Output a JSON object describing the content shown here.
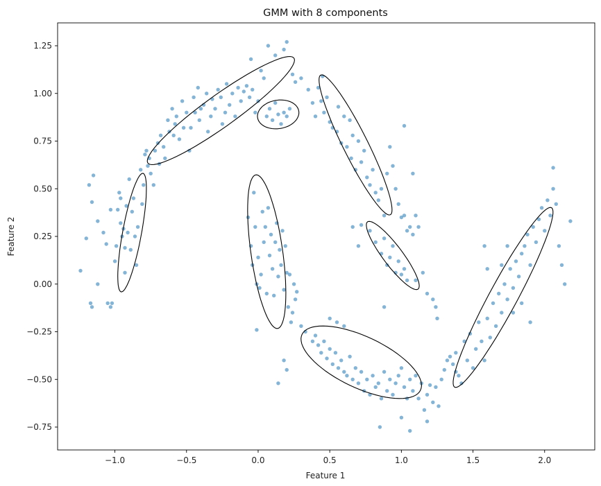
{
  "chart_data": {
    "type": "scatter",
    "title": "GMM with 8 components",
    "xlabel": "Feature 1",
    "ylabel": "Feature 2",
    "xlim": [
      -1.4,
      2.35
    ],
    "ylim": [
      -0.87,
      1.37
    ],
    "x_ticks": [
      -1.0,
      -0.5,
      0.0,
      0.5,
      1.0,
      1.5,
      2.0
    ],
    "x_tick_labels": [
      "−1.0",
      "−0.5",
      "0.0",
      "0.5",
      "1.0",
      "1.5",
      "2.0"
    ],
    "y_ticks": [
      -0.75,
      -0.5,
      -0.25,
      0.0,
      0.25,
      0.5,
      0.75,
      1.0,
      1.25
    ],
    "y_tick_labels": [
      "−0.75",
      "−0.50",
      "−0.25",
      "0.00",
      "0.25",
      "0.50",
      "0.75",
      "1.00",
      "1.25"
    ],
    "grid": false,
    "point_color": "#1f77b4",
    "point_opacity": 0.55,
    "ellipse_color": "#000000",
    "points": [
      [
        -1.24,
        0.07
      ],
      [
        -1.18,
        0.52
      ],
      [
        -1.17,
        -0.1
      ],
      [
        -1.16,
        -0.12
      ],
      [
        -1.16,
        0.43
      ],
      [
        -1.15,
        0.57
      ],
      [
        -1.2,
        0.24
      ],
      [
        -1.12,
        0.33
      ],
      [
        -1.12,
        0.0
      ],
      [
        -1.08,
        0.27
      ],
      [
        -1.06,
        0.21
      ],
      [
        -1.05,
        -0.1
      ],
      [
        -1.03,
        -0.12
      ],
      [
        -1.03,
        0.39
      ],
      [
        -1.02,
        -0.1
      ],
      [
        -1.0,
        0.12
      ],
      [
        -0.99,
        0.2
      ],
      [
        -0.98,
        0.39
      ],
      [
        -0.97,
        0.48
      ],
      [
        -0.96,
        0.45
      ],
      [
        -0.96,
        0.32
      ],
      [
        -0.95,
        0.25
      ],
      [
        -0.94,
        0.29
      ],
      [
        -0.93,
        0.19
      ],
      [
        -0.93,
        0.06
      ],
      [
        -0.92,
        0.41
      ],
      [
        -0.91,
        0.27
      ],
      [
        -0.9,
        0.55
      ],
      [
        -0.89,
        0.18
      ],
      [
        -0.88,
        0.38
      ],
      [
        -0.87,
        0.45
      ],
      [
        -0.86,
        0.25
      ],
      [
        -0.85,
        0.1
      ],
      [
        -0.84,
        0.3
      ],
      [
        -0.82,
        0.6
      ],
      [
        -0.81,
        0.42
      ],
      [
        -0.8,
        0.52
      ],
      [
        -0.79,
        0.68
      ],
      [
        -0.78,
        0.7
      ],
      [
        -0.77,
        0.62
      ],
      [
        -0.76,
        0.66
      ],
      [
        -0.75,
        0.58
      ],
      [
        -0.73,
        0.52
      ],
      [
        -0.72,
        0.7
      ],
      [
        -0.7,
        0.74
      ],
      [
        -0.69,
        0.63
      ],
      [
        -0.68,
        0.78
      ],
      [
        -0.66,
        0.72
      ],
      [
        -0.65,
        0.66
      ],
      [
        -0.63,
        0.86
      ],
      [
        -0.62,
        0.8
      ],
      [
        -0.6,
        0.92
      ],
      [
        -0.59,
        0.78
      ],
      [
        -0.58,
        0.84
      ],
      [
        -0.57,
        0.88
      ],
      [
        -0.55,
        0.76
      ],
      [
        -0.53,
        0.96
      ],
      [
        -0.52,
        0.82
      ],
      [
        -0.5,
        0.9
      ],
      [
        -0.48,
        0.7
      ],
      [
        -0.47,
        0.82
      ],
      [
        -0.45,
        0.98
      ],
      [
        -0.44,
        0.9
      ],
      [
        -0.42,
        1.03
      ],
      [
        -0.41,
        0.86
      ],
      [
        -0.4,
        0.92
      ],
      [
        -0.38,
        0.94
      ],
      [
        -0.36,
        1.0
      ],
      [
        -0.35,
        0.8
      ],
      [
        -0.33,
        0.88
      ],
      [
        -0.32,
        0.97
      ],
      [
        -0.3,
        0.92
      ],
      [
        -0.28,
        1.02
      ],
      [
        -0.26,
        0.98
      ],
      [
        -0.25,
        0.84
      ],
      [
        -0.23,
        0.9
      ],
      [
        -0.22,
        1.05
      ],
      [
        -0.2,
        0.94
      ],
      [
        -0.18,
        1.0
      ],
      [
        -0.16,
        0.88
      ],
      [
        -0.14,
        1.03
      ],
      [
        -0.12,
        0.96
      ],
      [
        -0.1,
        1.01
      ],
      [
        -0.08,
        1.04
      ],
      [
        -0.06,
        0.98
      ],
      [
        -0.04,
        1.02
      ],
      [
        -0.02,
        0.9
      ],
      [
        0.0,
        0.96
      ],
      [
        -0.05,
        1.18
      ],
      [
        0.02,
        1.12
      ],
      [
        0.04,
        1.08
      ],
      [
        0.06,
        0.88
      ],
      [
        0.08,
        0.92
      ],
      [
        0.1,
        0.86
      ],
      [
        0.12,
        0.95
      ],
      [
        0.14,
        0.89
      ],
      [
        0.16,
        0.84
      ],
      [
        0.18,
        0.9
      ],
      [
        0.2,
        0.88
      ],
      [
        0.22,
        0.92
      ],
      [
        0.12,
        1.2
      ],
      [
        0.07,
        1.25
      ],
      [
        0.18,
        1.23
      ],
      [
        0.2,
        1.27
      ],
      [
        0.24,
        1.1
      ],
      [
        0.26,
        1.06
      ],
      [
        0.3,
        1.08
      ],
      [
        0.35,
        1.02
      ],
      [
        0.38,
        0.95
      ],
      [
        0.4,
        0.88
      ],
      [
        0.42,
        1.03
      ],
      [
        0.44,
        0.96
      ],
      [
        0.45,
        1.09
      ],
      [
        0.46,
        0.9
      ],
      [
        0.48,
        0.98
      ],
      [
        0.5,
        0.85
      ],
      [
        0.52,
        0.82
      ],
      [
        0.55,
        0.8
      ],
      [
        0.56,
        0.93
      ],
      [
        0.58,
        0.74
      ],
      [
        0.6,
        0.88
      ],
      [
        0.62,
        0.72
      ],
      [
        0.64,
        0.86
      ],
      [
        0.65,
        0.66
      ],
      [
        0.66,
        0.78
      ],
      [
        0.68,
        0.6
      ],
      [
        0.7,
        0.75
      ],
      [
        0.72,
        0.64
      ],
      [
        0.74,
        0.7
      ],
      [
        0.76,
        0.56
      ],
      [
        0.78,
        0.52
      ],
      [
        0.8,
        0.6
      ],
      [
        0.82,
        0.48
      ],
      [
        0.84,
        0.44
      ],
      [
        0.86,
        0.5
      ],
      [
        0.88,
        0.36
      ],
      [
        0.9,
        0.58
      ],
      [
        0.92,
        0.72
      ],
      [
        0.94,
        0.62
      ],
      [
        0.96,
        0.5
      ],
      [
        0.98,
        0.42
      ],
      [
        1.0,
        0.35
      ],
      [
        1.02,
        0.36
      ],
      [
        1.04,
        0.28
      ],
      [
        1.06,
        0.3
      ],
      [
        1.08,
        0.26
      ],
      [
        1.1,
        0.36
      ],
      [
        1.02,
        0.83
      ],
      [
        1.08,
        0.58
      ],
      [
        1.12,
        0.3
      ],
      [
        0.66,
        0.3
      ],
      [
        0.7,
        0.2
      ],
      [
        0.72,
        0.31
      ],
      [
        0.78,
        0.28
      ],
      [
        0.82,
        0.22
      ],
      [
        0.86,
        0.16
      ],
      [
        0.88,
        0.24
      ],
      [
        0.9,
        0.1
      ],
      [
        0.92,
        0.14
      ],
      [
        0.94,
        0.2
      ],
      [
        0.96,
        0.06
      ],
      [
        0.98,
        0.12
      ],
      [
        1.0,
        0.05
      ],
      [
        1.02,
        0.08
      ],
      [
        1.04,
        0.02
      ],
      [
        1.1,
        0.02
      ],
      [
        1.15,
        0.06
      ],
      [
        1.18,
        -0.05
      ],
      [
        1.22,
        -0.08
      ],
      [
        1.24,
        -0.12
      ],
      [
        0.88,
        -0.12
      ],
      [
        1.25,
        -0.18
      ],
      [
        -0.07,
        0.35
      ],
      [
        -0.05,
        0.2
      ],
      [
        -0.04,
        0.1
      ],
      [
        -0.03,
        0.48
      ],
      [
        -0.02,
        0.3
      ],
      [
        -0.01,
        0.0
      ],
      [
        0.0,
        0.14
      ],
      [
        0.01,
        -0.02
      ],
      [
        0.02,
        0.05
      ],
      [
        0.03,
        0.38
      ],
      [
        0.04,
        0.22
      ],
      [
        0.05,
        0.3
      ],
      [
        0.06,
        -0.05
      ],
      [
        0.07,
        0.4
      ],
      [
        0.08,
        0.15
      ],
      [
        0.09,
        0.26
      ],
      [
        0.1,
        0.08
      ],
      [
        0.11,
        -0.06
      ],
      [
        0.12,
        0.22
      ],
      [
        0.13,
        0.32
      ],
      [
        0.14,
        0.04
      ],
      [
        0.15,
        0.18
      ],
      [
        0.16,
        0.1
      ],
      [
        0.17,
        0.28
      ],
      [
        0.18,
        -0.03
      ],
      [
        0.19,
        0.2
      ],
      [
        0.2,
        0.06
      ],
      [
        0.21,
        -0.12
      ],
      [
        0.22,
        0.05
      ],
      [
        0.23,
        -0.2
      ],
      [
        0.24,
        -0.15
      ],
      [
        0.25,
        0.0
      ],
      [
        0.26,
        -0.08
      ],
      [
        0.27,
        -0.04
      ],
      [
        0.14,
        -0.52
      ],
      [
        0.18,
        -0.4
      ],
      [
        0.2,
        -0.45
      ],
      [
        -0.01,
        -0.24
      ],
      [
        0.3,
        -0.22
      ],
      [
        0.33,
        -0.25
      ],
      [
        0.38,
        -0.3
      ],
      [
        0.4,
        -0.27
      ],
      [
        0.42,
        -0.32
      ],
      [
        0.44,
        -0.36
      ],
      [
        0.46,
        -0.3
      ],
      [
        0.48,
        -0.39
      ],
      [
        0.5,
        -0.34
      ],
      [
        0.52,
        -0.42
      ],
      [
        0.54,
        -0.36
      ],
      [
        0.56,
        -0.44
      ],
      [
        0.58,
        -0.4
      ],
      [
        0.6,
        -0.46
      ],
      [
        0.62,
        -0.48
      ],
      [
        0.64,
        -0.38
      ],
      [
        0.66,
        -0.5
      ],
      [
        0.68,
        -0.44
      ],
      [
        0.7,
        -0.52
      ],
      [
        0.72,
        -0.46
      ],
      [
        0.74,
        -0.56
      ],
      [
        0.76,
        -0.5
      ],
      [
        0.78,
        -0.58
      ],
      [
        0.8,
        -0.48
      ],
      [
        0.82,
        -0.54
      ],
      [
        0.84,
        -0.52
      ],
      [
        0.86,
        -0.6
      ],
      [
        0.88,
        -0.46
      ],
      [
        0.9,
        -0.56
      ],
      [
        0.92,
        -0.5
      ],
      [
        0.94,
        -0.58
      ],
      [
        0.96,
        -0.52
      ],
      [
        0.98,
        -0.48
      ],
      [
        1.0,
        -0.44
      ],
      [
        1.02,
        -0.54
      ],
      [
        1.04,
        -0.6
      ],
      [
        1.06,
        -0.5
      ],
      [
        1.08,
        -0.56
      ],
      [
        1.1,
        -0.48
      ],
      [
        1.12,
        -0.6
      ],
      [
        1.14,
        -0.52
      ],
      [
        1.16,
        -0.66
      ],
      [
        1.18,
        -0.58
      ],
      [
        1.2,
        -0.53
      ],
      [
        1.22,
        -0.62
      ],
      [
        1.24,
        -0.54
      ],
      [
        1.26,
        -0.64
      ],
      [
        1.28,
        -0.5
      ],
      [
        1.3,
        -0.45
      ],
      [
        1.32,
        -0.4
      ],
      [
        1.34,
        -0.38
      ],
      [
        1.36,
        -0.42
      ],
      [
        1.38,
        -0.36
      ],
      [
        0.6,
        -0.22
      ],
      [
        0.55,
        -0.2
      ],
      [
        0.5,
        -0.18
      ],
      [
        1.06,
        -0.77
      ],
      [
        1.18,
        -0.72
      ],
      [
        1.0,
        -0.7
      ],
      [
        0.85,
        -0.75
      ],
      [
        1.38,
        -0.46
      ],
      [
        1.4,
        -0.48
      ],
      [
        1.42,
        -0.52
      ],
      [
        1.44,
        -0.3
      ],
      [
        1.46,
        -0.4
      ],
      [
        1.48,
        -0.26
      ],
      [
        1.5,
        -0.44
      ],
      [
        1.52,
        -0.34
      ],
      [
        1.54,
        -0.2
      ],
      [
        1.56,
        -0.3
      ],
      [
        1.58,
        -0.4
      ],
      [
        1.6,
        -0.18
      ],
      [
        1.62,
        -0.28
      ],
      [
        1.64,
        -0.1
      ],
      [
        1.66,
        -0.22
      ],
      [
        1.68,
        -0.05
      ],
      [
        1.7,
        -0.15
      ],
      [
        1.72,
        0.0
      ],
      [
        1.74,
        -0.08
      ],
      [
        1.76,
        0.08
      ],
      [
        1.78,
        -0.02
      ],
      [
        1.8,
        0.12
      ],
      [
        1.82,
        0.04
      ],
      [
        1.84,
        0.16
      ],
      [
        1.86,
        0.2
      ],
      [
        1.88,
        0.26
      ],
      [
        1.9,
        0.1
      ],
      [
        1.92,
        0.3
      ],
      [
        1.94,
        0.22
      ],
      [
        1.96,
        0.34
      ],
      [
        1.98,
        0.4
      ],
      [
        2.0,
        0.28
      ],
      [
        2.02,
        0.44
      ],
      [
        2.04,
        0.36
      ],
      [
        2.06,
        0.5
      ],
      [
        2.08,
        0.42
      ],
      [
        2.1,
        0.2
      ],
      [
        2.12,
        0.1
      ],
      [
        2.14,
        0.0
      ],
      [
        2.06,
        0.61
      ],
      [
        2.18,
        0.33
      ],
      [
        1.7,
        0.1
      ],
      [
        1.74,
        0.2
      ],
      [
        1.78,
        -0.15
      ],
      [
        1.84,
        -0.1
      ],
      [
        1.9,
        -0.2
      ],
      [
        1.6,
        0.08
      ],
      [
        1.58,
        0.2
      ]
    ],
    "ellipses": [
      {
        "cx": -0.88,
        "cy": 0.27,
        "rx": 0.32,
        "ry": 0.065,
        "angle_deg": 76
      },
      {
        "cx": -0.26,
        "cy": 0.91,
        "rx": 0.58,
        "ry": 0.09,
        "angle_deg": 28
      },
      {
        "cx": 0.14,
        "cy": 0.89,
        "rx": 0.145,
        "ry": 0.075,
        "angle_deg": 5
      },
      {
        "cx": 0.68,
        "cy": 0.73,
        "rx": 0.44,
        "ry": 0.08,
        "angle_deg": -56
      },
      {
        "cx": 0.94,
        "cy": 0.15,
        "rx": 0.25,
        "ry": 0.06,
        "angle_deg": -44
      },
      {
        "cx": 0.06,
        "cy": 0.17,
        "rx": 0.41,
        "ry": 0.11,
        "angle_deg": -79
      },
      {
        "cx": 0.72,
        "cy": -0.41,
        "rx": 0.44,
        "ry": 0.14,
        "angle_deg": -18
      },
      {
        "cx": 1.71,
        "cy": -0.07,
        "rx": 0.58,
        "ry": 0.09,
        "angle_deg": 54
      }
    ]
  }
}
